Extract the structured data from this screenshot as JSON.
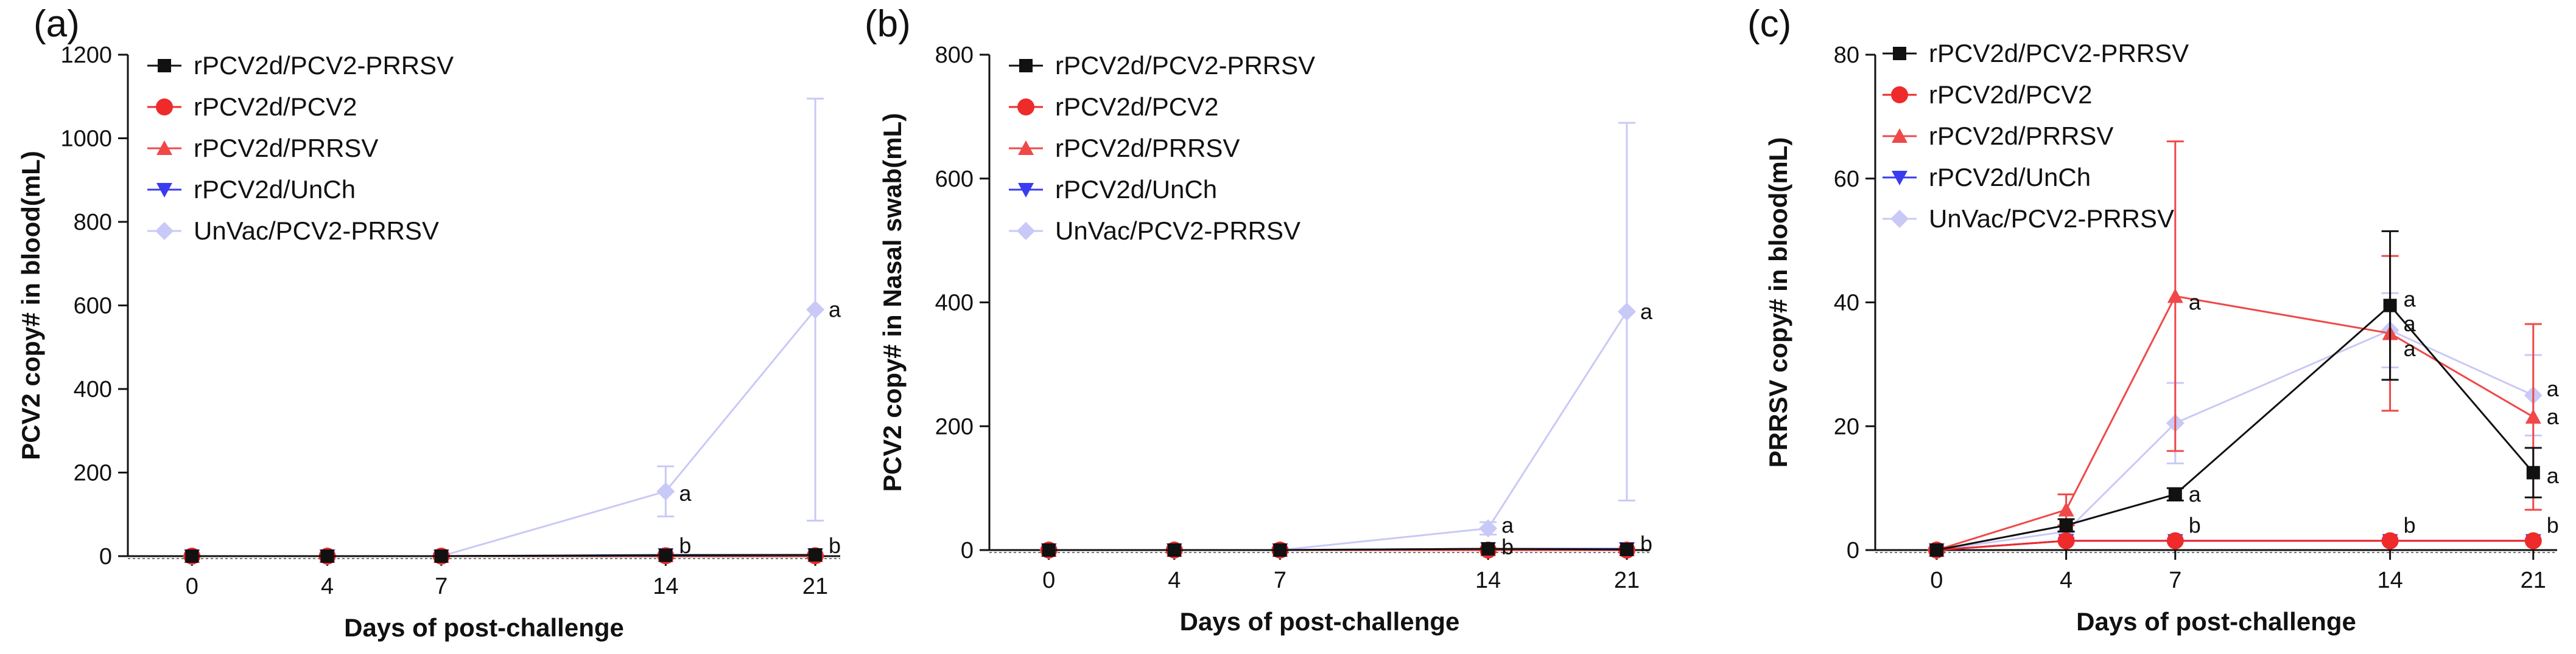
{
  "figure": {
    "colors": {
      "rPCV2d/PCV2-PRRSV": "#111111",
      "rPCV2d/PCV2": "#ee2a2a",
      "rPCV2d/PRRSV": "#f04848",
      "rPCV2d/UnCh": "#3b3bf0",
      "UnVac/PCV2-PRRSV": "#c9c9f7"
    }
  },
  "chart_data": [
    {
      "type": "line",
      "panel_label": "(a)",
      "title": "",
      "xlabel": "Days of post-challenge",
      "ylabel": "PCV2 copy# in blood(mL)",
      "categories": [
        "0",
        "4",
        "7",
        "14",
        "21"
      ],
      "ylim": [
        0,
        1200
      ],
      "yticks": [
        0,
        200,
        400,
        600,
        800,
        1000,
        1200
      ],
      "legend_position": "top-left",
      "series": [
        {
          "name": "rPCV2d/PCV2-PRRSV",
          "marker": "square",
          "values": [
            0,
            0,
            0,
            2,
            3
          ],
          "err": [
            0,
            0,
            0,
            0,
            0
          ]
        },
        {
          "name": "rPCV2d/PCV2",
          "marker": "circle",
          "values": [
            0,
            0,
            0,
            1,
            1
          ],
          "err": [
            0,
            0,
            0,
            0,
            0
          ]
        },
        {
          "name": "rPCV2d/PRRSV",
          "marker": "triangle-up",
          "values": [
            0,
            0,
            0,
            2,
            2
          ],
          "err": [
            0,
            0,
            0,
            0,
            0
          ]
        },
        {
          "name": "rPCV2d/UnCh",
          "marker": "triangle-down",
          "values": [
            0,
            0,
            0,
            3,
            3
          ],
          "err": [
            0,
            0,
            0,
            0,
            0
          ]
        },
        {
          "name": "UnVac/PCV2-PRRSV",
          "marker": "diamond",
          "values": [
            0,
            0,
            0,
            155,
            590
          ],
          "err": [
            0,
            0,
            0,
            60,
            505
          ]
        }
      ],
      "annotations": [
        {
          "category": "14",
          "y": 150,
          "text": "a"
        },
        {
          "category": "21",
          "y": 590,
          "text": "a"
        },
        {
          "category": "14",
          "y": 25,
          "text": "b"
        },
        {
          "category": "21",
          "y": 25,
          "text": "b"
        }
      ]
    },
    {
      "type": "line",
      "panel_label": "(b)",
      "title": "",
      "xlabel": "Days of post-challenge",
      "ylabel": "PCV2 copy# in Nasal swab(mL)",
      "categories": [
        "0",
        "4",
        "7",
        "14",
        "21"
      ],
      "ylim": [
        0,
        800
      ],
      "yticks": [
        0,
        200,
        400,
        600,
        800
      ],
      "legend_position": "top-left",
      "series": [
        {
          "name": "rPCV2d/PCV2-PRRSV",
          "marker": "square",
          "values": [
            0,
            0,
            0,
            2,
            1
          ],
          "err": [
            0,
            0,
            0,
            0,
            0
          ]
        },
        {
          "name": "rPCV2d/PCV2",
          "marker": "circle",
          "values": [
            0,
            0,
            0,
            0,
            0
          ],
          "err": [
            0,
            0,
            0,
            0,
            0
          ]
        },
        {
          "name": "rPCV2d/PRRSV",
          "marker": "triangle-up",
          "values": [
            0,
            0,
            0,
            1,
            1
          ],
          "err": [
            0,
            0,
            0,
            0,
            0
          ]
        },
        {
          "name": "rPCV2d/UnCh",
          "marker": "triangle-down",
          "values": [
            0,
            0,
            0,
            2,
            2
          ],
          "err": [
            0,
            0,
            0,
            0,
            0
          ]
        },
        {
          "name": "UnVac/PCV2-PRRSV",
          "marker": "diamond",
          "values": [
            0,
            0,
            0,
            35,
            385
          ],
          "err": [
            0,
            0,
            0,
            10,
            305
          ]
        }
      ],
      "annotations": [
        {
          "category": "14",
          "y": 40,
          "text": "a"
        },
        {
          "category": "21",
          "y": 385,
          "text": "a"
        },
        {
          "category": "14",
          "y": 5,
          "text": "b"
        },
        {
          "category": "21",
          "y": 10,
          "text": "b"
        }
      ]
    },
    {
      "type": "line",
      "panel_label": "(c)",
      "title": "",
      "xlabel": "Days of post-challenge",
      "ylabel": "PRRSV copy# in blood(mL)",
      "categories": [
        "0",
        "4",
        "7",
        "14",
        "21"
      ],
      "ylim": [
        0,
        80
      ],
      "yticks": [
        0,
        20,
        40,
        60,
        80
      ],
      "legend_position": "top-left",
      "series": [
        {
          "name": "rPCV2d/PCV2-PRRSV",
          "marker": "square",
          "values": [
            0,
            4,
            9,
            39.5,
            12.5
          ],
          "err": [
            0,
            1,
            1,
            12,
            4
          ]
        },
        {
          "name": "rPCV2d/PCV2",
          "marker": "circle",
          "values": [
            0,
            1.5,
            1.5,
            1.5,
            1.5
          ],
          "err": [
            0,
            0,
            0,
            0,
            0
          ]
        },
        {
          "name": "rPCV2d/PRRSV",
          "marker": "triangle-up",
          "values": [
            0,
            6.5,
            41,
            35,
            21.5
          ],
          "err": [
            0,
            2.5,
            25,
            12.5,
            15
          ]
        },
        {
          "name": "rPCV2d/UnCh",
          "marker": "triangle-down",
          "values": [
            0,
            1.5,
            1.5,
            1.5,
            1.5
          ],
          "err": [
            0,
            0,
            0,
            0,
            0
          ]
        },
        {
          "name": "UnVac/PCV2-PRRSV",
          "marker": "diamond",
          "values": [
            0,
            3,
            20.5,
            35.5,
            25
          ],
          "err": [
            0,
            1,
            6.5,
            6,
            6.5
          ]
        }
      ],
      "annotations": [
        {
          "category": "7",
          "y": 40,
          "text": "a"
        },
        {
          "category": "7",
          "y": 9,
          "text": "a"
        },
        {
          "category": "14",
          "y": 40.5,
          "text": "a"
        },
        {
          "category": "14",
          "y": 36.5,
          "text": "a"
        },
        {
          "category": "14",
          "y": 32.5,
          "text": "a"
        },
        {
          "category": "21",
          "y": 26,
          "text": "a"
        },
        {
          "category": "21",
          "y": 21.5,
          "text": "a"
        },
        {
          "category": "21",
          "y": 12,
          "text": "a"
        },
        {
          "category": "7",
          "y": 4,
          "text": "b"
        },
        {
          "category": "14",
          "y": 4,
          "text": "b"
        },
        {
          "category": "21",
          "y": 4,
          "text": "b"
        }
      ]
    }
  ]
}
